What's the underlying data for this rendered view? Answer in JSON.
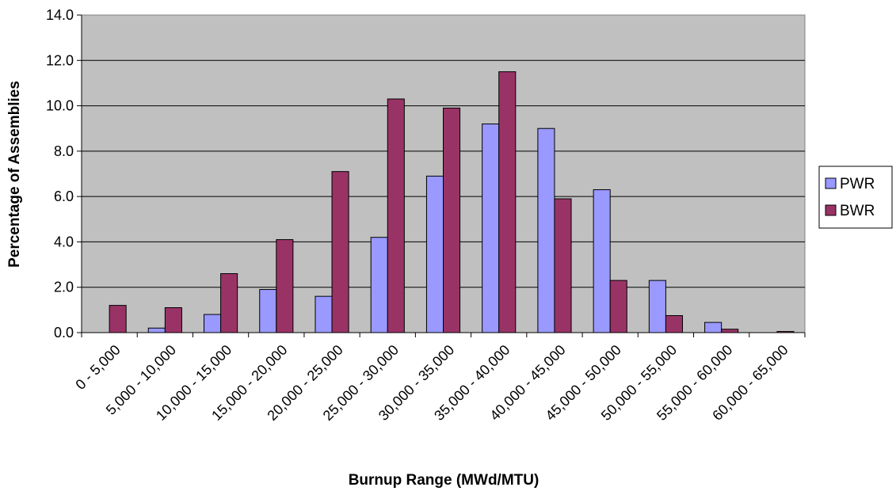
{
  "chart_data": {
    "type": "bar",
    "xlabel": "Burnup Range (MWd/MTU)",
    "ylabel": "Percentage of Assemblies",
    "ylim": [
      0,
      14
    ],
    "yticks": [
      "0.0",
      "2.0",
      "4.0",
      "6.0",
      "8.0",
      "10.0",
      "12.0",
      "14.0"
    ],
    "grid": true,
    "legend_position": "right",
    "categories": [
      "0 - 5,000",
      "5,000 - 10,000",
      "10,000 - 15,000",
      "15,000 - 20,000",
      "20,000 - 25,000",
      "25,000 - 30,000",
      "30,000 - 35,000",
      "35,000 - 40,000",
      "40,000 - 45,000",
      "45,000 - 50,000",
      "50,000 - 55,000",
      "55,000 - 60,000",
      "60,000 - 65,000"
    ],
    "series": [
      {
        "name": "PWR",
        "color": "#9999FF",
        "values": [
          0.0,
          0.2,
          0.8,
          1.9,
          1.6,
          4.2,
          6.9,
          9.2,
          9.0,
          6.3,
          2.3,
          0.45,
          0.0
        ]
      },
      {
        "name": "BWR",
        "color": "#993366",
        "values": [
          1.2,
          1.1,
          2.6,
          4.1,
          7.1,
          10.3,
          9.9,
          11.5,
          5.9,
          2.3,
          0.75,
          0.15,
          0.05
        ]
      }
    ],
    "plot_background": "#C0C0C0"
  }
}
